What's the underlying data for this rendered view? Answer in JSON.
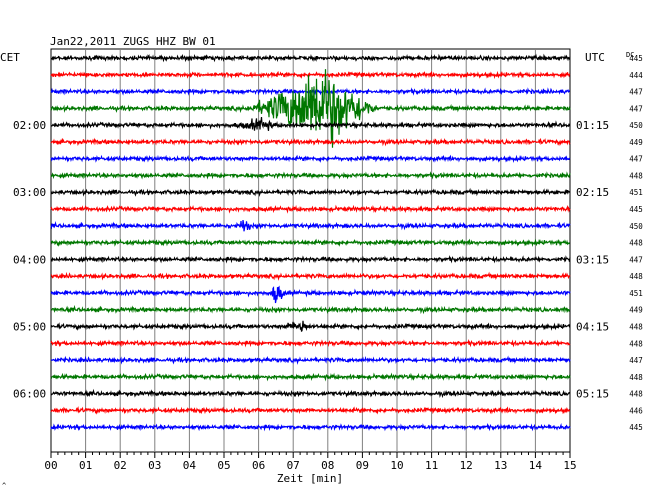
{
  "chart_data": {
    "type": "line",
    "title": "Jan22,2011   ZUGS HHZ BW 01",
    "left_axis_label": "CET",
    "right_axis_label": "UTC",
    "dc_label": "DC",
    "xlabel": "Zeit [min]",
    "xlim": [
      0,
      15
    ],
    "x_ticks": [
      "00",
      "01",
      "02",
      "03",
      "04",
      "05",
      "06",
      "07",
      "08",
      "09",
      "10",
      "11",
      "12",
      "13",
      "14",
      "15"
    ],
    "trace_colors": [
      "#000000",
      "#ff0000",
      "#0000ff",
      "#007700"
    ],
    "left_time_labels": [
      {
        "label": "02:00",
        "trace": 4
      },
      {
        "label": "03:00",
        "trace": 8
      },
      {
        "label": "04:00",
        "trace": 12
      },
      {
        "label": "05:00",
        "trace": 16
      },
      {
        "label": "06:00",
        "trace": 20
      }
    ],
    "right_time_labels": [
      {
        "label": "01:15",
        "trace": 4
      },
      {
        "label": "02:15",
        "trace": 8
      },
      {
        "label": "03:15",
        "trace": 12
      },
      {
        "label": "04:15",
        "trace": 16
      },
      {
        "label": "05:15",
        "trace": 20
      }
    ],
    "dc_values": [
      445,
      444,
      447,
      447,
      450,
      449,
      447,
      448,
      451,
      445,
      450,
      448,
      447,
      448,
      451,
      449,
      448,
      448,
      447,
      448,
      448,
      446,
      445
    ],
    "events": [
      {
        "trace": 3,
        "start_min": 5.5,
        "peak_min": 7.8,
        "end_min": 9.5,
        "peak_amplitude": "large"
      },
      {
        "trace": 4,
        "start_min": 5.2,
        "peak_min": 6.1,
        "end_min": 6.5,
        "peak_amplitude": "small"
      },
      {
        "trace": 10,
        "start_min": 5.3,
        "peak_min": 5.6,
        "end_min": 5.8,
        "peak_amplitude": "small"
      },
      {
        "trace": 14,
        "start_min": 6.3,
        "peak_min": 6.5,
        "end_min": 6.8,
        "peak_amplitude": "medium"
      },
      {
        "trace": 16,
        "start_min": 6.6,
        "peak_min": 7.3,
        "end_min": 7.5,
        "peak_amplitude": "small"
      }
    ],
    "grid": true
  }
}
